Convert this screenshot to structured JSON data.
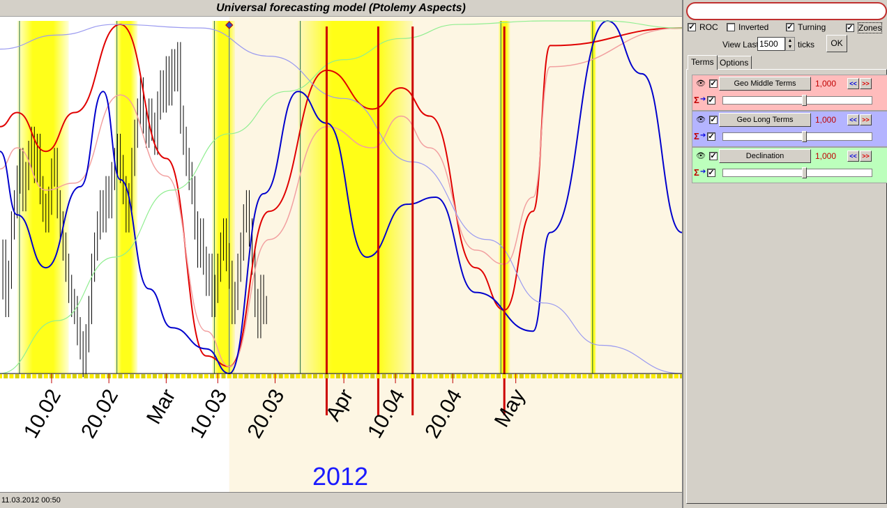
{
  "title": "Universal forecasting model (Ptolemy Aspects)",
  "status": "11.03.2012  00:50",
  "year_label": "2012",
  "controls": {
    "roc": {
      "label": "ROC",
      "checked": true
    },
    "inverted": {
      "label": "Inverted",
      "checked": false
    },
    "turning": {
      "label": "Turning",
      "checked": true
    },
    "zones": {
      "label": "Zones",
      "checked": true
    },
    "view_last_label": "View Last",
    "view_last_value": "1500",
    "ticks_label": "ticks",
    "ok_label": "OK",
    "search_value": ""
  },
  "tabs": [
    {
      "label": "Terms"
    },
    {
      "label": "Options"
    }
  ],
  "terms": [
    {
      "name": "Geo Middle Terms",
      "weight": "1,000",
      "color": "#ffbcbc",
      "visible": true,
      "enabled": true,
      "sum": true,
      "slider": 0.55
    },
    {
      "name": "Geo Long Terms",
      "weight": "1,000",
      "color": "#b4b4ff",
      "visible": true,
      "enabled": true,
      "sum": true,
      "slider": 0.55
    },
    {
      "name": "Declination",
      "weight": "1,000",
      "color": "#bcffbc",
      "visible": true,
      "enabled": true,
      "sum": true,
      "slider": 0.55
    }
  ],
  "nav_labels": {
    "prev": "<<",
    "next": ">>"
  },
  "chart_data": {
    "type": "line",
    "x_unit": "days since 2012-02-01",
    "x_range": [
      0,
      119
    ],
    "y_range": [
      0,
      1
    ],
    "x_ticks": [
      {
        "label": "10.02",
        "x": 9
      },
      {
        "label": "20.02",
        "x": 19
      },
      {
        "label": "Mar",
        "x": 29
      },
      {
        "label": "10.03",
        "x": 38
      },
      {
        "label": "20.03",
        "x": 48
      },
      {
        "label": "Apr",
        "x": 60
      },
      {
        "label": "10.04",
        "x": 69
      },
      {
        "label": "20.04",
        "x": 79
      },
      {
        "label": "May",
        "x": 90
      }
    ],
    "present_x": 40,
    "zones": [
      {
        "from": 3,
        "to": 12
      },
      {
        "from": 20,
        "to": 24
      },
      {
        "from": 37,
        "to": 41
      },
      {
        "from": 52,
        "to": 72
      },
      {
        "from": 87,
        "to": 89
      },
      {
        "from": 103,
        "to": 104
      }
    ],
    "turning_lines": [
      57,
      66,
      72,
      88
    ],
    "series": [
      {
        "name": "Geo Middle Terms",
        "color": "#e00000",
        "width": 2,
        "points": [
          [
            0,
            0.7
          ],
          [
            3,
            0.74
          ],
          [
            8,
            0.63
          ],
          [
            13,
            0.74
          ],
          [
            21,
            0.99
          ],
          [
            29,
            0.61
          ],
          [
            36,
            0.05
          ],
          [
            40,
            0.02
          ],
          [
            47,
            0.46
          ],
          [
            57,
            0.86
          ],
          [
            65,
            0.75
          ],
          [
            70,
            0.81
          ],
          [
            75,
            0.73
          ],
          [
            83,
            0.3
          ],
          [
            88,
            0.18
          ],
          [
            93,
            0.46
          ],
          [
            96,
            0.93
          ],
          [
            119,
            0.98
          ]
        ]
      },
      {
        "name": "Geo Middle Terms (smoothed)",
        "color": "#f2a0a0",
        "width": 1.5,
        "points": [
          [
            0,
            0.58
          ],
          [
            3,
            0.64
          ],
          [
            8,
            0.52
          ],
          [
            13,
            0.54
          ],
          [
            21,
            0.79
          ],
          [
            29,
            0.56
          ],
          [
            36,
            0.12
          ],
          [
            40,
            0.02
          ],
          [
            47,
            0.38
          ],
          [
            57,
            0.7
          ],
          [
            65,
            0.64
          ],
          [
            70,
            0.73
          ],
          [
            75,
            0.64
          ],
          [
            83,
            0.35
          ],
          [
            88,
            0.31
          ],
          [
            93,
            0.5
          ],
          [
            96,
            0.87
          ],
          [
            119,
            0.98
          ]
        ]
      },
      {
        "name": "Geo Long Terms",
        "color": "#0000cc",
        "width": 2,
        "points": [
          [
            0,
            0.63
          ],
          [
            3,
            0.45
          ],
          [
            8,
            0.3
          ],
          [
            14,
            0.53
          ],
          [
            18,
            0.8
          ],
          [
            21,
            0.55
          ],
          [
            26,
            0.24
          ],
          [
            30,
            0.13
          ],
          [
            36,
            0.07
          ],
          [
            40,
            0.0
          ],
          [
            46,
            0.51
          ],
          [
            52,
            0.8
          ],
          [
            57,
            0.71
          ],
          [
            64,
            0.33
          ],
          [
            71,
            0.48
          ],
          [
            76,
            0.5
          ],
          [
            83,
            0.23
          ],
          [
            93,
            0.12
          ],
          [
            96,
            0.4
          ],
          [
            106,
            1.0
          ],
          [
            112,
            0.85
          ],
          [
            119,
            0.4
          ]
        ]
      },
      {
        "name": "Geo Long Terms (slow)",
        "color": "#9a9af0",
        "width": 1.2,
        "points": [
          [
            0,
            0.92
          ],
          [
            10,
            0.96
          ],
          [
            20,
            0.99
          ],
          [
            35,
            0.98
          ],
          [
            47,
            0.9
          ],
          [
            60,
            0.78
          ],
          [
            72,
            0.6
          ],
          [
            85,
            0.38
          ],
          [
            95,
            0.2
          ],
          [
            105,
            0.08
          ],
          [
            119,
            0.0
          ]
        ]
      },
      {
        "name": "Declination",
        "color": "#90ee90",
        "width": 1.2,
        "points": [
          [
            0,
            0.0
          ],
          [
            10,
            0.15
          ],
          [
            20,
            0.33
          ],
          [
            30,
            0.52
          ],
          [
            40,
            0.68
          ],
          [
            50,
            0.8
          ],
          [
            60,
            0.89
          ],
          [
            70,
            0.95
          ],
          [
            80,
            0.99
          ],
          [
            95,
            1.0
          ],
          [
            105,
            1.0
          ],
          [
            119,
            0.98
          ]
        ]
      }
    ],
    "price_ticks": [
      [
        0.5,
        0.25
      ],
      [
        1,
        0.34
      ],
      [
        1.5,
        0.2
      ],
      [
        2,
        0.28
      ],
      [
        2.5,
        0.42
      ],
      [
        3,
        0.48
      ],
      [
        3.5,
        0.55
      ],
      [
        4,
        0.6
      ],
      [
        4.5,
        0.5
      ],
      [
        5,
        0.56
      ],
      [
        5.5,
        0.62
      ],
      [
        6,
        0.66
      ],
      [
        6.5,
        0.58
      ],
      [
        7,
        0.64
      ],
      [
        7.5,
        0.52
      ],
      [
        8,
        0.47
      ],
      [
        8.5,
        0.44
      ],
      [
        9,
        0.49
      ],
      [
        9.5,
        0.57
      ],
      [
        10,
        0.6
      ],
      [
        10.5,
        0.48
      ],
      [
        11,
        0.42
      ],
      [
        11.5,
        0.36
      ],
      [
        12,
        0.3
      ],
      [
        12.5,
        0.24
      ],
      [
        13,
        0.2
      ],
      [
        13.5,
        0.18
      ],
      [
        14,
        0.12
      ],
      [
        14.5,
        0.08
      ],
      [
        15,
        0.03
      ],
      [
        15.5,
        0.1
      ],
      [
        16,
        0.18
      ],
      [
        16.5,
        0.3
      ],
      [
        17,
        0.36
      ],
      [
        17.5,
        0.42
      ],
      [
        18,
        0.48
      ],
      [
        18.5,
        0.44
      ],
      [
        19,
        0.52
      ],
      [
        19.5,
        0.48
      ],
      [
        20,
        0.56
      ],
      [
        20.5,
        0.6
      ],
      [
        21,
        0.64
      ],
      [
        21.5,
        0.58
      ],
      [
        22,
        0.52
      ],
      [
        22.5,
        0.44
      ],
      [
        23,
        0.5
      ],
      [
        23.5,
        0.6
      ],
      [
        24,
        0.68
      ],
      [
        24.5,
        0.74
      ],
      [
        25,
        0.8
      ],
      [
        25.5,
        0.72
      ],
      [
        26,
        0.68
      ],
      [
        26.5,
        0.74
      ],
      [
        27,
        0.7
      ],
      [
        27.5,
        0.66
      ],
      [
        28,
        0.76
      ],
      [
        28.5,
        0.82
      ],
      [
        29,
        0.78
      ],
      [
        29.5,
        0.86
      ],
      [
        30,
        0.8
      ],
      [
        30.5,
        0.88
      ],
      [
        31,
        0.84
      ],
      [
        31.5,
        0.9
      ],
      [
        32,
        0.72
      ],
      [
        32.5,
        0.66
      ],
      [
        33,
        0.6
      ],
      [
        33.5,
        0.56
      ],
      [
        34,
        0.52
      ],
      [
        34.5,
        0.42
      ],
      [
        35,
        0.34
      ],
      [
        35.5,
        0.4
      ],
      [
        36,
        0.32
      ],
      [
        36.5,
        0.26
      ],
      [
        37,
        0.3
      ],
      [
        37.5,
        0.2
      ],
      [
        38,
        0.24
      ],
      [
        38.5,
        0.3
      ],
      [
        39,
        0.36
      ],
      [
        39.5,
        0.4
      ],
      [
        40,
        0.33
      ],
      [
        40.5,
        0.28
      ],
      [
        41,
        0.18
      ],
      [
        41.5,
        0.22
      ],
      [
        42,
        0.3
      ],
      [
        42.5,
        0.36
      ],
      [
        43,
        0.44
      ],
      [
        43.5,
        0.48
      ],
      [
        44,
        0.4
      ],
      [
        44.5,
        0.32
      ],
      [
        45,
        0.2
      ],
      [
        45.5,
        0.14
      ],
      [
        46,
        0.24
      ],
      [
        46.5,
        0.18
      ]
    ]
  }
}
